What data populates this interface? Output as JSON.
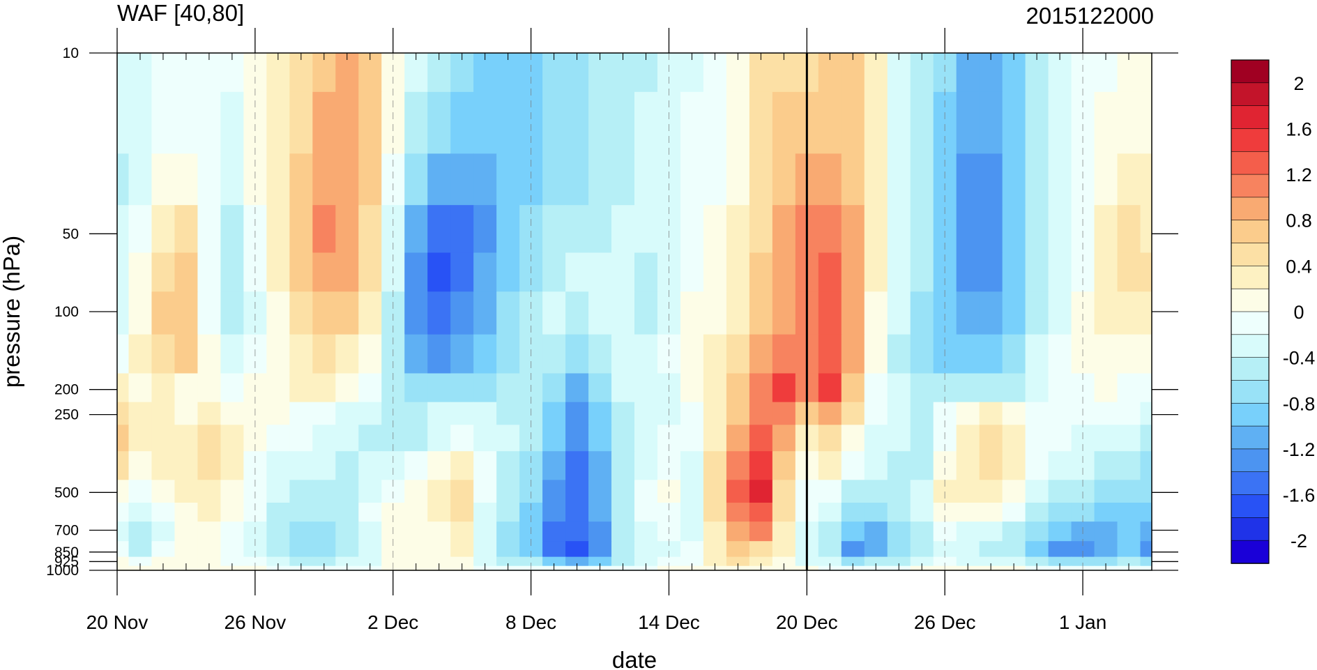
{
  "chart_data": {
    "type": "heatmap",
    "subtype": "filled-contour time-pressure cross-section",
    "title": "WAF [40,80]",
    "subtitle": "2015122000",
    "xlabel": "date",
    "ylabel": "pressure (hPa)",
    "x_ticks": [
      "20 Nov",
      "26 Nov",
      "2 Dec",
      "8 Dec",
      "14 Dec",
      "20 Dec",
      "26 Dec",
      "1 Jan"
    ],
    "x_tick_days": [
      0,
      6,
      12,
      18,
      24,
      30,
      36,
      42
    ],
    "xlim_days": [
      0,
      45
    ],
    "y_ticks": [
      10,
      50,
      100,
      200,
      250,
      500,
      700,
      850,
      925,
      1000
    ],
    "y_tick_labels": [
      "10",
      "50",
      "100",
      "200",
      "250",
      "500",
      "700",
      "850",
      "925",
      "1000"
    ],
    "ylim": [
      10,
      1000
    ],
    "y_scale": "log",
    "y_reversed": true,
    "marker_day": 30,
    "marker_label": "20 Dec",
    "colorbar": {
      "levels": [
        -2.2,
        -2.0,
        -1.8,
        -1.6,
        -1.4,
        -1.2,
        -1.0,
        -0.8,
        -0.6,
        -0.4,
        -0.2,
        0,
        0.2,
        0.4,
        0.6,
        0.8,
        1.0,
        1.2,
        1.4,
        1.6,
        1.8,
        2.0,
        2.2
      ],
      "labels": [
        "2",
        "1.6",
        "1.2",
        "0.8",
        "0.4",
        "0",
        "-0.4",
        "-0.8",
        "-1.2",
        "-1.6",
        "-2"
      ],
      "label_values": [
        2,
        1.6,
        1.2,
        0.8,
        0.4,
        0,
        -0.4,
        -0.8,
        -1.2,
        -1.6,
        -2
      ],
      "colors": [
        "#1a00d8",
        "#1f33e8",
        "#2852f5",
        "#3b73f4",
        "#4c94f1",
        "#5fb0f3",
        "#78d0fb",
        "#99e2f7",
        "#b6eff6",
        "#d8fbfb",
        "#eefffd",
        "#fdfde7",
        "#fdf1c2",
        "#fce0a5",
        "#fbcc8c",
        "#f9aa72",
        "#f7835f",
        "#f45e4b",
        "#ef3c3c",
        "#e02432",
        "#c3142a",
        "#a00022"
      ]
    },
    "dates": [
      0,
      1,
      2,
      3,
      4,
      5,
      6,
      7,
      8,
      9,
      10,
      11,
      12,
      13,
      14,
      15,
      16,
      17,
      18,
      19,
      20,
      21,
      22,
      23,
      24,
      25,
      26,
      27,
      28,
      29,
      30,
      31,
      32,
      33,
      34,
      35,
      36,
      37,
      38,
      39,
      40,
      41,
      42,
      43,
      44,
      45
    ],
    "pressures": [
      10,
      20,
      30,
      50,
      70,
      100,
      150,
      200,
      250,
      300,
      400,
      500,
      600,
      700,
      850,
      925,
      1000
    ],
    "values": [
      [
        -0.4,
        -0.3,
        -0.1,
        -0.05,
        -0.1,
        -0.2,
        0.1,
        0.2,
        0.4,
        0.7,
        0.9,
        0.7,
        0.1,
        -0.4,
        -0.6,
        -0.8,
        -0.9,
        -1.0,
        -1.0,
        -0.8,
        -0.7,
        -0.6,
        -0.5,
        -0.5,
        -0.4,
        -0.35,
        -0.2,
        0.0,
        0.4,
        0.5,
        0.5,
        0.6,
        0.7,
        0.3,
        -0.3,
        -0.5,
        -0.8,
        -1.1,
        -1.1,
        -1.0,
        -0.6,
        -0.4,
        -0.2,
        -0.1,
        0.0,
        0.0
      ],
      [
        -0.4,
        -0.3,
        -0.1,
        -0.05,
        -0.1,
        -0.25,
        0.1,
        0.3,
        0.5,
        0.8,
        0.9,
        0.7,
        0.0,
        -0.5,
        -0.8,
        -1.0,
        -1.0,
        -1.0,
        -0.9,
        -0.8,
        -0.7,
        -0.6,
        -0.5,
        -0.4,
        -0.3,
        -0.2,
        -0.1,
        0.1,
        0.4,
        0.6,
        0.7,
        0.7,
        0.7,
        0.3,
        -0.3,
        -0.6,
        -0.9,
        -1.2,
        -1.2,
        -1.0,
        -0.6,
        -0.4,
        -0.1,
        0.0,
        0.1,
        0.1
      ],
      [
        -0.5,
        -0.3,
        0.05,
        0.05,
        -0.2,
        -0.35,
        0.1,
        0.3,
        0.6,
        0.9,
        0.9,
        0.6,
        -0.1,
        -0.7,
        -1.1,
        -1.2,
        -1.1,
        -1.0,
        -0.9,
        -0.8,
        -0.7,
        -0.6,
        -0.5,
        -0.4,
        -0.4,
        -0.2,
        -0.1,
        0.1,
        0.5,
        0.6,
        0.8,
        0.8,
        0.7,
        0.2,
        -0.3,
        -0.6,
        -1.0,
        -1.3,
        -1.3,
        -1.0,
        -0.6,
        -0.4,
        -0.1,
        0.1,
        0.2,
        0.2
      ],
      [
        -0.4,
        -0.1,
        0.3,
        0.4,
        -0.2,
        -0.5,
        -0.1,
        0.3,
        0.7,
        1.1,
        0.9,
        0.5,
        -0.3,
        -1.2,
        -1.6,
        -1.5,
        -1.3,
        -1.0,
        -0.8,
        -0.6,
        -0.5,
        -0.5,
        -0.4,
        -0.4,
        -0.3,
        -0.1,
        0.0,
        0.2,
        0.5,
        0.8,
        1.0,
        1.1,
        0.8,
        0.2,
        -0.3,
        -0.6,
        -1.0,
        -1.4,
        -1.3,
        -1.0,
        -0.6,
        -0.4,
        -0.1,
        0.2,
        0.4,
        0.3
      ],
      [
        -0.3,
        0.0,
        0.5,
        0.6,
        -0.1,
        -0.6,
        -0.2,
        0.2,
        0.6,
        0.9,
        0.8,
        0.4,
        -0.4,
        -1.3,
        -1.7,
        -1.5,
        -1.2,
        -0.9,
        -0.7,
        -0.5,
        -0.4,
        -0.4,
        -0.3,
        -0.5,
        -0.3,
        -0.1,
        0.0,
        0.2,
        0.6,
        0.9,
        1.1,
        1.2,
        0.9,
        0.2,
        -0.3,
        -0.6,
        -1.0,
        -1.3,
        -1.3,
        -1.0,
        -0.6,
        -0.4,
        -0.1,
        0.2,
        0.4,
        0.4
      ],
      [
        -0.3,
        0.1,
        0.6,
        0.7,
        -0.1,
        -0.6,
        -0.3,
        0.1,
        0.4,
        0.6,
        0.6,
        0.3,
        -0.5,
        -1.3,
        -1.6,
        -1.4,
        -1.1,
        -0.8,
        -0.6,
        -0.4,
        -0.6,
        -0.3,
        -0.3,
        -0.6,
        -0.3,
        0.0,
        0.1,
        0.3,
        0.6,
        0.8,
        1.0,
        1.2,
        0.9,
        0.1,
        -0.4,
        -0.7,
        -1.0,
        -1.2,
        -1.2,
        -0.9,
        -0.5,
        -0.3,
        0.0,
        0.2,
        0.3,
        0.3
      ],
      [
        -0.2,
        0.2,
        0.5,
        0.6,
        0.0,
        -0.4,
        -0.2,
        0.1,
        0.3,
        0.4,
        0.3,
        0.1,
        -0.5,
        -1.1,
        -1.3,
        -1.1,
        -0.9,
        -0.7,
        -0.5,
        -0.5,
        -0.8,
        -0.5,
        -0.3,
        -0.4,
        -0.2,
        0.0,
        0.2,
        0.4,
        0.8,
        1.0,
        1.1,
        1.3,
        0.8,
        0.0,
        -0.5,
        -0.7,
        -0.9,
        -1.0,
        -1.0,
        -0.8,
        -0.4,
        -0.2,
        0.0,
        0.1,
        0.1,
        0.1
      ],
      [
        0.3,
        0.1,
        0.2,
        0.0,
        0.0,
        -0.1,
        0.0,
        0.0,
        0.2,
        0.2,
        0.1,
        -0.1,
        -0.5,
        -0.7,
        -0.8,
        -0.8,
        -0.7,
        -0.6,
        -0.6,
        -0.8,
        -1.1,
        -0.7,
        -0.4,
        -0.3,
        -0.3,
        0.0,
        0.3,
        0.6,
        1.0,
        1.4,
        1.0,
        1.4,
        0.7,
        -0.1,
        -0.4,
        -0.6,
        -0.6,
        -0.6,
        -0.6,
        -0.5,
        -0.3,
        -0.1,
        -0.1,
        0.0,
        -0.1,
        -0.1
      ],
      [
        0.5,
        0.3,
        0.2,
        0.1,
        0.3,
        0.1,
        0.0,
        0.0,
        -0.1,
        -0.1,
        -0.3,
        -0.4,
        -0.6,
        -0.6,
        -0.4,
        -0.3,
        -0.4,
        -0.5,
        -0.6,
        -0.9,
        -1.3,
        -0.9,
        -0.5,
        -0.3,
        -0.3,
        -0.1,
        0.3,
        0.7,
        1.0,
        1.1,
        0.6,
        0.9,
        0.4,
        -0.2,
        -0.4,
        -0.6,
        -0.2,
        0.1,
        0.3,
        0.1,
        -0.1,
        -0.1,
        -0.2,
        -0.1,
        -0.2,
        -0.3
      ],
      [
        0.6,
        0.3,
        0.2,
        0.2,
        0.4,
        0.2,
        0.0,
        -0.1,
        -0.2,
        -0.3,
        -0.4,
        -0.5,
        -0.5,
        -0.5,
        -0.3,
        -0.1,
        -0.3,
        -0.4,
        -0.6,
        -1.0,
        -1.4,
        -1.0,
        -0.5,
        -0.3,
        -0.2,
        -0.2,
        0.3,
        0.9,
        1.2,
        0.8,
        0.3,
        0.5,
        0.1,
        -0.3,
        -0.4,
        -0.5,
        -0.1,
        0.2,
        0.4,
        0.2,
        -0.1,
        -0.2,
        -0.3,
        -0.3,
        -0.4,
        -0.5
      ],
      [
        0.4,
        0.1,
        0.2,
        0.3,
        0.4,
        0.2,
        -0.1,
        -0.3,
        -0.4,
        -0.4,
        -0.5,
        -0.4,
        -0.3,
        -0.2,
        0.0,
        0.3,
        -0.2,
        -0.5,
        -0.7,
        -1.1,
        -1.5,
        -1.2,
        -0.6,
        -0.3,
        -0.1,
        -0.3,
        0.4,
        1.1,
        1.4,
        0.6,
        0.0,
        0.2,
        -0.2,
        -0.4,
        -0.5,
        -0.5,
        0.1,
        0.3,
        0.4,
        0.2,
        -0.1,
        -0.3,
        -0.4,
        -0.5,
        -0.6,
        -0.7
      ],
      [
        0.0,
        -0.2,
        0.0,
        0.2,
        0.3,
        0.1,
        -0.1,
        -0.4,
        -0.5,
        -0.5,
        -0.5,
        -0.3,
        -0.1,
        0.0,
        0.2,
        0.5,
        -0.2,
        -0.5,
        -0.8,
        -1.3,
        -1.5,
        -1.2,
        -0.6,
        -0.2,
        0.0,
        -0.3,
        0.5,
        1.3,
        1.6,
        0.5,
        -0.1,
        -0.1,
        -0.5,
        -0.6,
        -0.5,
        -0.3,
        0.3,
        0.2,
        0.2,
        0.0,
        -0.3,
        -0.5,
        -0.6,
        -0.7,
        -0.8,
        -0.8
      ],
      [
        -0.2,
        -0.4,
        -0.2,
        0.1,
        0.2,
        0.0,
        -0.2,
        -0.5,
        -0.6,
        -0.6,
        -0.5,
        -0.2,
        0.0,
        0.1,
        0.2,
        0.4,
        -0.3,
        -0.6,
        -0.9,
        -1.4,
        -1.5,
        -1.2,
        -0.6,
        -0.2,
        -0.1,
        -0.3,
        0.4,
        1.1,
        1.3,
        0.4,
        -0.2,
        -0.3,
        -0.7,
        -0.8,
        -0.6,
        -0.4,
        0.1,
        0.0,
        0.0,
        -0.2,
        -0.5,
        -0.7,
        -0.8,
        -0.9,
        -1.0,
        -1.0
      ],
      [
        -0.3,
        -0.6,
        -0.3,
        0.0,
        0.1,
        -0.1,
        -0.3,
        -0.5,
        -0.7,
        -0.7,
        -0.6,
        -0.3,
        0.0,
        0.1,
        0.1,
        0.3,
        -0.4,
        -0.7,
        -1.0,
        -1.5,
        -1.6,
        -1.3,
        -0.6,
        -0.3,
        -0.2,
        -0.3,
        0.3,
        0.9,
        1.1,
        0.3,
        -0.3,
        -0.5,
        -1.0,
        -1.1,
        -0.8,
        -0.5,
        -0.2,
        -0.3,
        -0.3,
        -0.5,
        -0.8,
        -1.0,
        -1.2,
        -1.1,
        -1.0,
        -1.2
      ],
      [
        -0.2,
        -0.5,
        -0.2,
        0.0,
        0.0,
        -0.2,
        -0.3,
        -0.6,
        -0.7,
        -0.7,
        -0.6,
        -0.4,
        0.0,
        0.1,
        0.1,
        0.2,
        -0.4,
        -0.8,
        -0.9,
        -1.5,
        -1.8,
        -1.4,
        -0.6,
        -0.4,
        -0.3,
        -0.2,
        0.3,
        0.6,
        0.5,
        0.2,
        -0.4,
        -0.6,
        -1.3,
        -1.1,
        -0.8,
        -0.5,
        -0.3,
        -0.4,
        -0.5,
        -0.6,
        -1.0,
        -1.3,
        -1.4,
        -1.2,
        -1.0,
        -1.3
      ],
      [
        0.0,
        -0.2,
        0.0,
        0.0,
        0.0,
        -0.1,
        -0.2,
        -0.4,
        -0.5,
        -0.5,
        -0.4,
        -0.3,
        0.0,
        0.1,
        0.1,
        0.1,
        -0.3,
        -0.5,
        -0.6,
        -1.0,
        -1.1,
        -0.9,
        -0.5,
        -0.3,
        -0.2,
        -0.1,
        0.2,
        0.4,
        0.3,
        0.1,
        -0.3,
        -0.4,
        -0.7,
        -0.6,
        -0.5,
        -0.3,
        -0.2,
        -0.3,
        -0.3,
        -0.4,
        -0.6,
        -0.8,
        -0.8,
        -0.7,
        -0.6,
        -0.7
      ],
      [
        0.0,
        0.0,
        0.0,
        0.0,
        0.0,
        0.0,
        0.0,
        -0.1,
        -0.1,
        -0.1,
        -0.1,
        -0.1,
        0.0,
        0.0,
        0.0,
        0.0,
        -0.1,
        -0.1,
        -0.1,
        -0.2,
        -0.2,
        -0.2,
        -0.1,
        -0.1,
        0.0,
        0.0,
        0.1,
        0.1,
        0.1,
        0.0,
        0.0,
        -0.1,
        -0.1,
        -0.1,
        -0.1,
        0.0,
        0.0,
        0.0,
        0.0,
        0.0,
        -0.1,
        -0.1,
        -0.1,
        -0.1,
        -0.1,
        -0.1
      ]
    ]
  }
}
